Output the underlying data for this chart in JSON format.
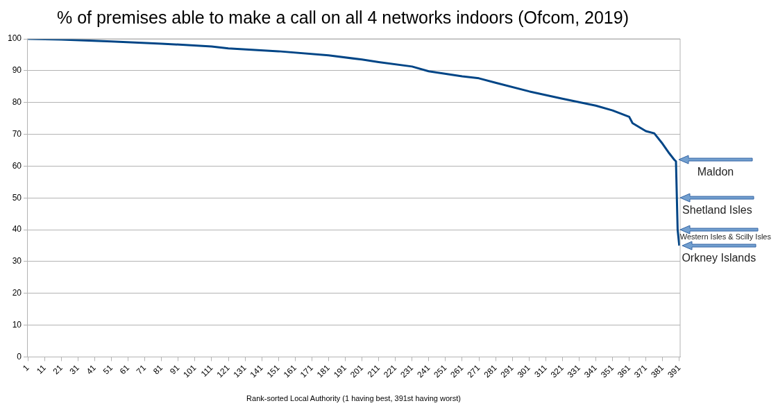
{
  "chart_data": {
    "type": "line",
    "title": "% of premises able to make a call on all 4 networks indoors (Ofcom, 2019)",
    "xlabel": "Rank-sorted Local Authority (1 having best, 391st having worst)",
    "x": [
      1,
      21,
      51,
      81,
      111,
      121,
      151,
      181,
      201,
      211,
      231,
      241,
      261,
      271,
      281,
      301,
      321,
      341,
      351,
      361,
      363,
      371,
      376,
      381,
      385,
      388,
      389,
      390,
      391
    ],
    "series": [
      {
        "color": "#004586",
        "values": [
          100,
          99.8,
          99.2,
          98.5,
          97.6,
          97,
          96.1,
          94.8,
          93.5,
          92.7,
          91.3,
          89.8,
          88.2,
          87.6,
          86.2,
          83.5,
          81.2,
          79,
          77.5,
          75.5,
          73.5,
          71,
          70.3,
          67,
          64,
          62,
          61.5,
          40,
          35
        ]
      }
    ],
    "xlim": [
      0.5,
      391.5
    ],
    "xticks": [
      1,
      11,
      21,
      31,
      41,
      51,
      61,
      71,
      81,
      91,
      101,
      111,
      121,
      131,
      141,
      151,
      161,
      171,
      181,
      191,
      201,
      211,
      221,
      231,
      241,
      251,
      261,
      271,
      281,
      291,
      301,
      311,
      321,
      331,
      341,
      351,
      361,
      371,
      381,
      391
    ],
    "ylim": [
      0,
      100
    ],
    "yticks": [
      0,
      10,
      20,
      30,
      40,
      50,
      60,
      70,
      80,
      90,
      100
    ],
    "grid": "y",
    "legend": false,
    "marker": "none",
    "line_style": "solid",
    "annotations": [
      {
        "text": "Maldon",
        "x": 389,
        "y": 62
      },
      {
        "text": "Shetland Isles",
        "x": 390,
        "y": 50
      },
      {
        "text": "Western Isles & Scilly Isles",
        "x": 390,
        "y": 40
      },
      {
        "text": "Orkney Islands",
        "x": 391,
        "y": 35
      }
    ]
  }
}
